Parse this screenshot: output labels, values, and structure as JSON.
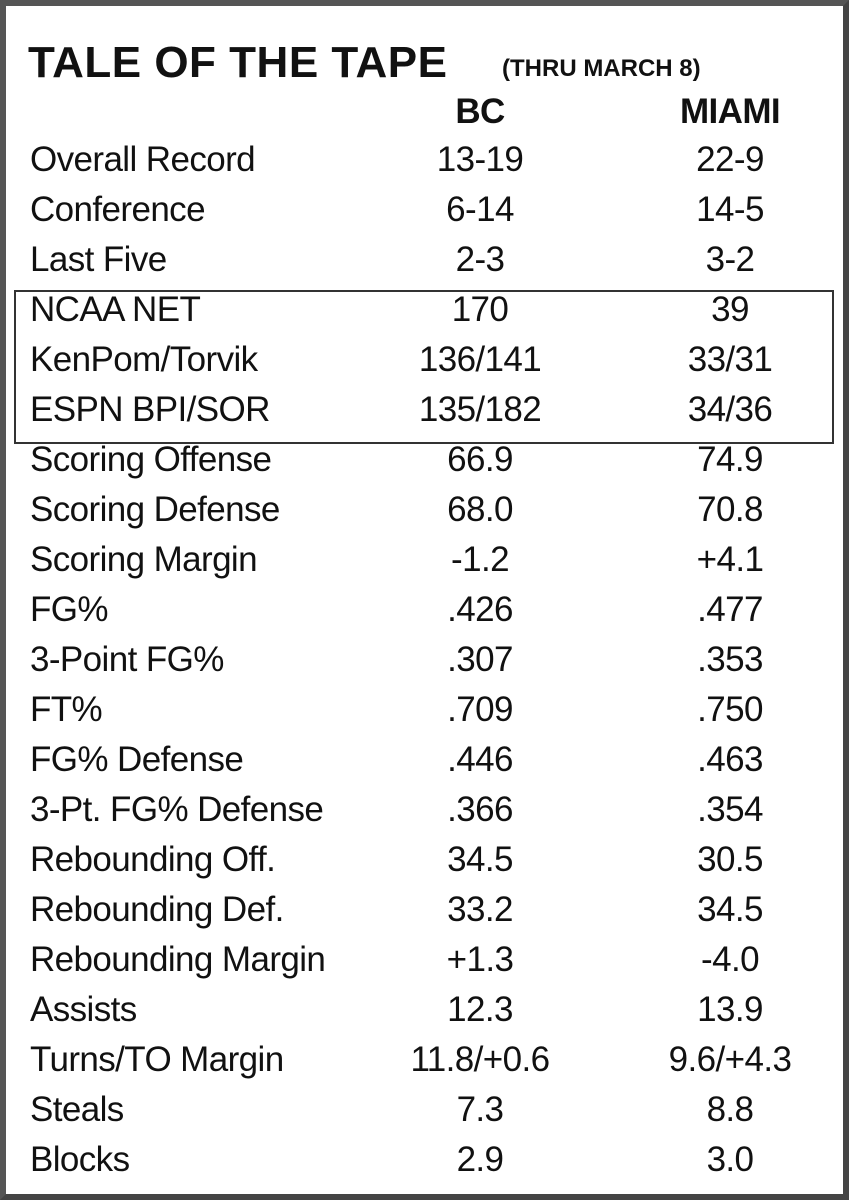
{
  "header": {
    "title": "TALE OF THE TAPE",
    "subtitle": "(THRU MARCH 8)"
  },
  "table": {
    "columns": [
      "BC",
      "MIAMI"
    ],
    "rows": [
      [
        "Overall Record",
        "13-19",
        "22-9"
      ],
      [
        "Conference",
        "6-14",
        "14-5"
      ],
      [
        "Last Five",
        "2-3",
        "3-2"
      ],
      [
        "NCAA NET",
        "170",
        "39"
      ],
      [
        "KenPom/Torvik",
        "136/141",
        "33/31"
      ],
      [
        "ESPN BPI/SOR",
        "135/182",
        "34/36"
      ],
      [
        "Scoring Offense",
        "66.9",
        "74.9"
      ],
      [
        "Scoring Defense",
        "68.0",
        "70.8"
      ],
      [
        "Scoring Margin",
        "-1.2",
        "+4.1"
      ],
      [
        "FG%",
        ".426",
        ".477"
      ],
      [
        "3-Point FG%",
        ".307",
        ".353"
      ],
      [
        "FT%",
        ".709",
        ".750"
      ],
      [
        "FG% Defense",
        ".446",
        ".463"
      ],
      [
        "3-Pt. FG% Defense",
        ".366",
        ".354"
      ],
      [
        "Rebounding Off.",
        "34.5",
        "30.5"
      ],
      [
        "Rebounding Def.",
        "33.2",
        "34.5"
      ],
      [
        "Rebounding Margin",
        "+1.3",
        "-4.0"
      ],
      [
        "Assists",
        "12.3",
        "13.9"
      ],
      [
        "Turns/TO Margin",
        "11.8/+0.6",
        "9.6/+4.3"
      ],
      [
        "Steals",
        "7.3",
        "8.8"
      ],
      [
        "Blocks",
        "2.9",
        "3.0"
      ]
    ]
  }
}
